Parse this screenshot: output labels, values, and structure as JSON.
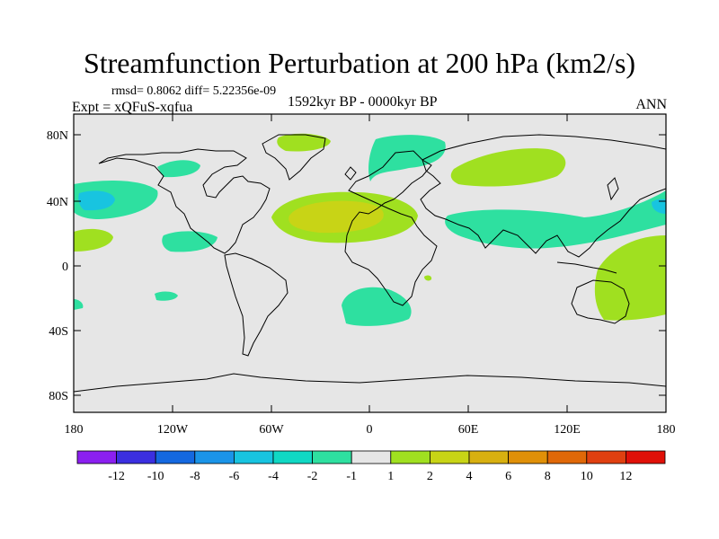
{
  "title": "Streamfunction Perturbation at 200 hPa (km2/s)",
  "stats": "rmsd= 0.8062 diff= 5.22356e-09",
  "experiment": "Expt = xQFuS-xqfua",
  "period": "1592kyr BP - 0000kyr BP",
  "season": "ANN",
  "lat_labels": [
    "80N",
    "40N",
    "0",
    "40S",
    "80S"
  ],
  "lon_labels": [
    "180",
    "120W",
    "60W",
    "0",
    "60E",
    "120E",
    "180"
  ],
  "colorbar_labels": [
    "-12",
    "-10",
    "-8",
    "-6",
    "-4",
    "-2",
    "-1",
    "1",
    "2",
    "4",
    "6",
    "8",
    "10",
    "12"
  ],
  "colorbar_colors": [
    "#8b1ff0",
    "#3b2fe0",
    "#1468e0",
    "#1a94e8",
    "#18c4e0",
    "#10d8c4",
    "#2ee0a0",
    "#e6e6e6",
    "#a0e020",
    "#c8d416",
    "#d8b010",
    "#e09008",
    "#e06808",
    "#e04010",
    "#e01008"
  ]
}
